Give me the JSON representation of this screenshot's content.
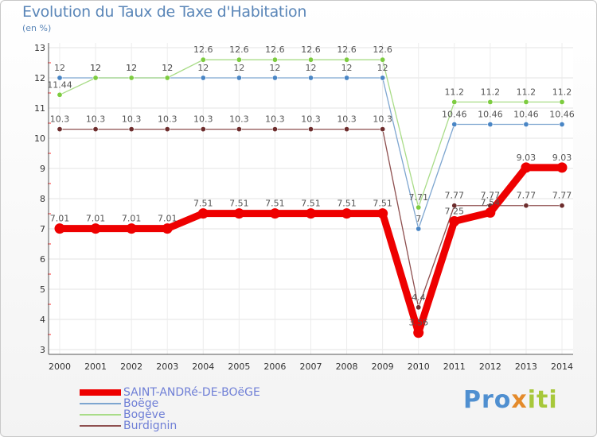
{
  "header": {
    "title": "Evolution du Taux de Taxe d'Habitation",
    "unit": "(en %)"
  },
  "logo": {
    "text": "Proxiti",
    "color_blue": "#4f8fd0",
    "color_orange": "#e48a2a",
    "color_green": "#a7c83a"
  },
  "chart_data": {
    "type": "line",
    "title": "Evolution du Taux de Taxe d'Habitation",
    "ylabel": "(en %)",
    "xlabel": "",
    "ylim": [
      3,
      13
    ],
    "yticks": [
      "3",
      "4",
      "5",
      "6",
      "7",
      "8",
      "9",
      "10",
      "11",
      "12",
      "13"
    ],
    "grid": true,
    "legend_position": "bottom-left",
    "x": [
      "2000",
      "2001",
      "2002",
      "2003",
      "2004",
      "2005",
      "2006",
      "2007",
      "2008",
      "2009",
      "2010",
      "2011",
      "2012",
      "2013",
      "2014"
    ],
    "series": [
      {
        "name": "SAINT-ANDRé-DE-BOëGE",
        "color": "#ee0000",
        "marker_color": "#ee0000",
        "bold": true,
        "values": [
          7.01,
          7.01,
          7.01,
          7.01,
          7.51,
          7.51,
          7.51,
          7.51,
          7.51,
          7.51,
          3.56,
          7.25,
          7.54,
          9.03,
          9.03
        ],
        "labels": [
          "7.01",
          "7.01",
          "7.01",
          "7.01",
          "7.51",
          "7.51",
          "7.51",
          "7.51",
          "7.51",
          "7.51",
          "3.56",
          "7.25",
          "7.54",
          "9.03",
          "9.03"
        ]
      },
      {
        "name": "Boëge",
        "color": "#7ea6d0",
        "marker_color": "#4a86c5",
        "bold": false,
        "values": [
          12,
          12,
          12,
          12,
          12,
          12,
          12,
          12,
          12,
          12,
          7,
          10.46,
          10.46,
          10.46,
          10.46
        ],
        "labels": [
          "12",
          "12",
          "12",
          "12",
          "12",
          "12",
          "12",
          "12",
          "12",
          "12",
          "7",
          "10.46",
          "10.46",
          "10.46",
          "10.46"
        ]
      },
      {
        "name": "Bogève",
        "color": "#a9dc88",
        "marker_color": "#7dcc40",
        "bold": false,
        "values": [
          11.44,
          12,
          12,
          12,
          12.6,
          12.6,
          12.6,
          12.6,
          12.6,
          12.6,
          7.71,
          11.2,
          11.2,
          11.2,
          11.2
        ],
        "labels": [
          "11.44",
          "12",
          "12",
          "12",
          "12.6",
          "12.6",
          "12.6",
          "12.6",
          "12.6",
          "12.6",
          "7.71",
          "11.2",
          "11.2",
          "11.2",
          "11.2"
        ]
      },
      {
        "name": "Burdignin",
        "color": "#8e4f4f",
        "marker_color": "#6d2d2d",
        "bold": false,
        "values": [
          10.3,
          10.3,
          10.3,
          10.3,
          10.3,
          10.3,
          10.3,
          10.3,
          10.3,
          10.3,
          4.4,
          7.77,
          7.77,
          7.77,
          7.77
        ],
        "labels": [
          "10.3",
          "10.3",
          "10.3",
          "10.3",
          "10.3",
          "10.3",
          "10.3",
          "10.3",
          "10.3",
          "10.3",
          "4.4",
          "7.77",
          "7.77",
          "7.77",
          "7.77"
        ]
      }
    ]
  }
}
